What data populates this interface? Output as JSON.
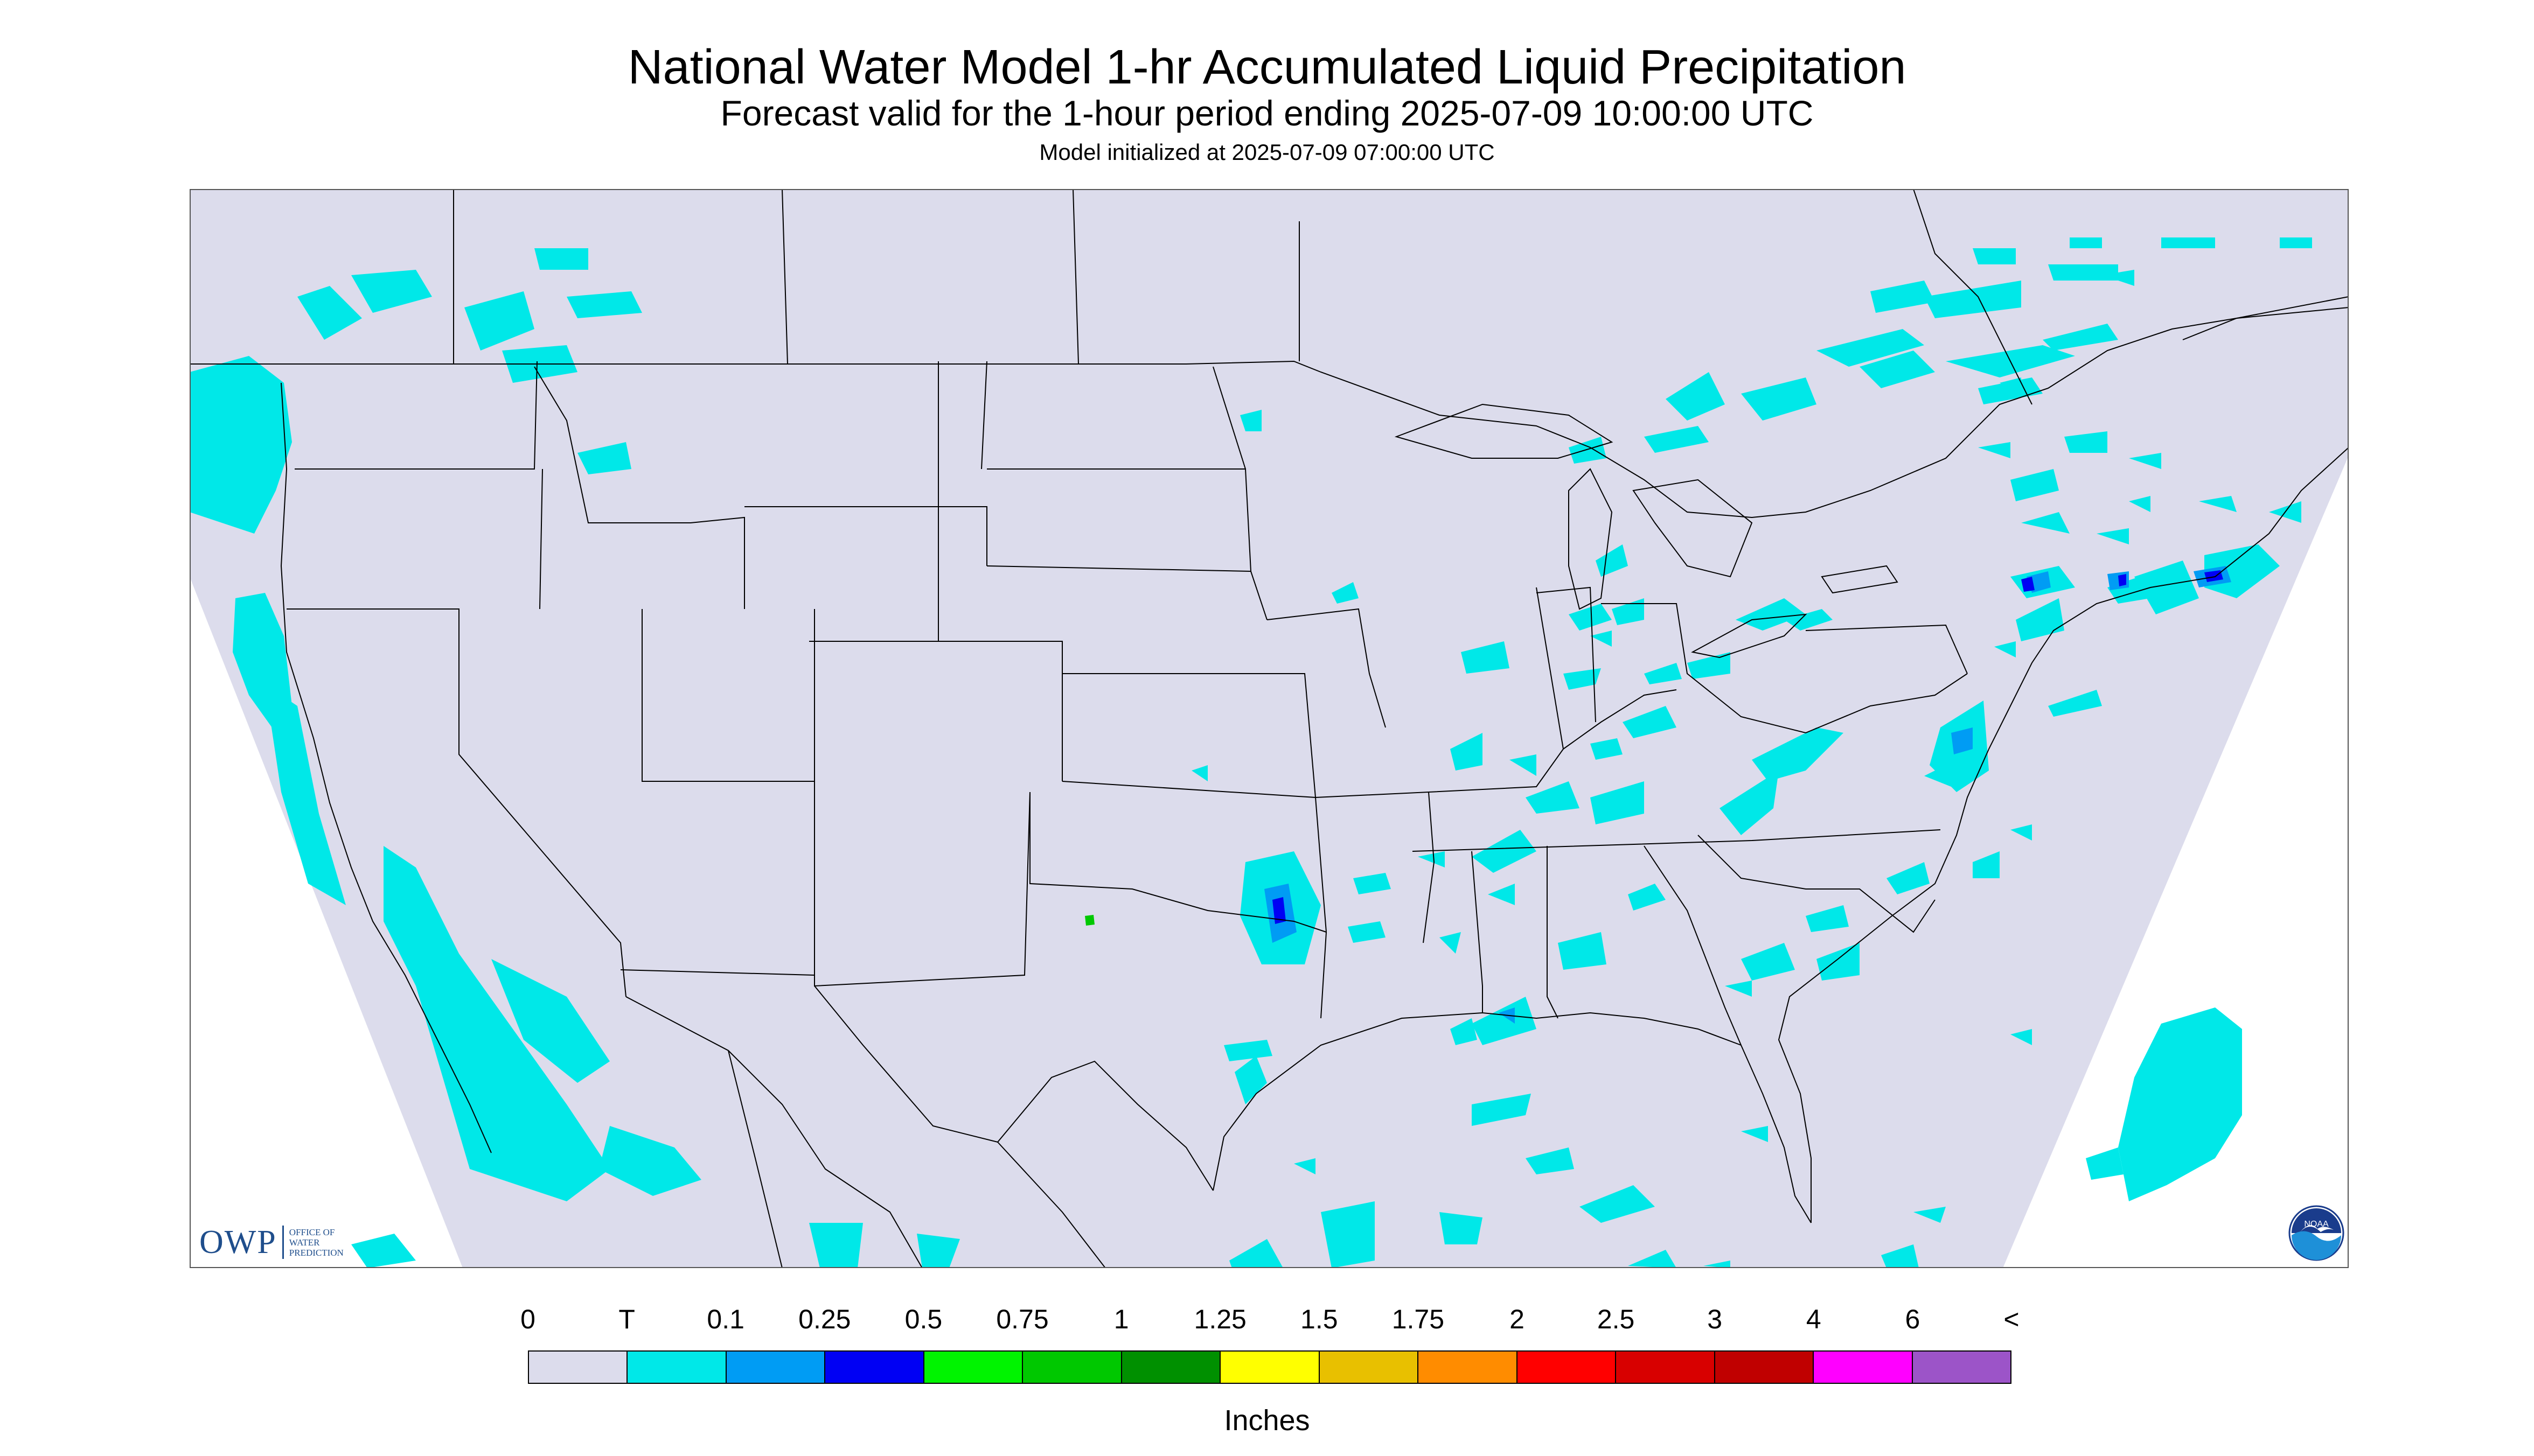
{
  "header": {
    "title": "National Water Model 1-hr Accumulated Liquid Precipitation",
    "subtitle": "Forecast valid for the 1-hour period ending 2025-07-09 10:00:00 UTC",
    "initialized": "Model initialized at 2025-07-09 07:00:00 UTC"
  },
  "map": {
    "background_color": "#dcdcec",
    "outside_color": "#ffffff",
    "border_color": "#000000"
  },
  "legend": {
    "labels": [
      "0",
      "T",
      "0.1",
      "0.25",
      "0.5",
      "0.75",
      "1",
      "1.25",
      "1.5",
      "1.75",
      "2",
      "2.5",
      "3",
      "4",
      "6",
      "<"
    ],
    "colors": [
      "#dcdcec",
      "#00e8e8",
      "#009cf4",
      "#0000f4",
      "#00f400",
      "#00c800",
      "#009000",
      "#ffff00",
      "#e8c000",
      "#ff8c00",
      "#ff0000",
      "#d80000",
      "#c00000",
      "#ff00ff",
      "#9c54c8"
    ],
    "units": "Inches"
  },
  "logos": {
    "owp_letters": "OWP",
    "owp_text": [
      "OFFICE OF",
      "WATER",
      "PREDICTION"
    ],
    "noaa_text": "NOAA",
    "icons": [
      "owp-logo",
      "noaa-logo"
    ]
  }
}
